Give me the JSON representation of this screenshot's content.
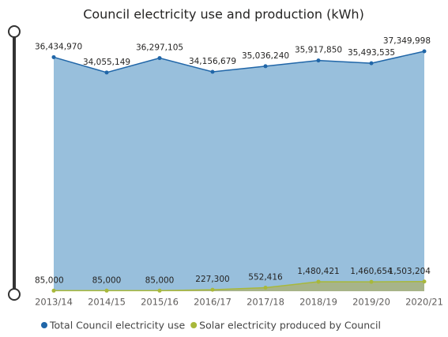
{
  "chart_data": {
    "type": "area",
    "title": "Council electricity use and production (kWh)",
    "categories": [
      "2013/14",
      "2014/15",
      "2015/16",
      "2016/17",
      "2017/18",
      "2018/19",
      "2019/20",
      "2020/21"
    ],
    "series": [
      {
        "name": "Total Council electricity use",
        "color": "#2066a8",
        "fill": "#98bfdc",
        "values": [
          36434970,
          34055149,
          36297105,
          34156679,
          35036240,
          35917850,
          35493535,
          37349998
        ],
        "value_labels": [
          "36,434,970",
          "34,055,149",
          "36,297,105",
          "34,156,679",
          "35,036,240",
          "35,917,850",
          "35,493,535",
          "37,349,998"
        ]
      },
      {
        "name": "Solar electricity produced by Council",
        "color": "#a8b83a",
        "fill": "#a9b27a",
        "values": [
          85000,
          85000,
          85000,
          227300,
          552416,
          1480421,
          1460654,
          1503204
        ],
        "value_labels": [
          "85,000",
          "85,000",
          "85,000",
          "227,300",
          "552,416",
          "1,480,421",
          "1,460,654",
          "1,503,204"
        ]
      }
    ],
    "legend": "bottom"
  }
}
